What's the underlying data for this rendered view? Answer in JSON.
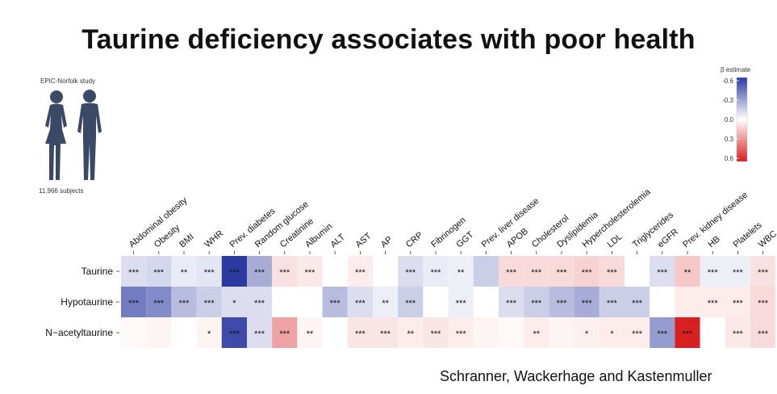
{
  "title": "Taurine deficiency associates with poor health",
  "study": {
    "label": "EPIC-Norfolk study",
    "subjects": "11,966 subjects"
  },
  "credit": "Schranner, Wackerhage and Kastenmuller",
  "legend": {
    "title": "β estimate",
    "ticks": [
      "-0.6",
      "-0.3",
      "0.0",
      "0.3",
      "0.6"
    ]
  },
  "colors": {
    "negative": "#2b3aa0",
    "neutral": "#ffffff",
    "positive": "#d82020",
    "figure": "#3a4a66"
  },
  "chart_data": {
    "type": "heatmap",
    "title": "Taurine deficiency associates with poor health",
    "x_labels": [
      "Abdominal obesity",
      "Obesity",
      "BMI",
      "WHR",
      "Prev. diabetes",
      "Random glucose",
      "Creatinine",
      "Albumin",
      "ALT",
      "AST",
      "AP",
      "CRP",
      "Fibrinogen",
      "GGT",
      "Prev. liver disease",
      "APOB",
      "Cholesterol",
      "Dyslipidemia",
      "Hypercholesterolemia",
      "LDL",
      "Triglycerides",
      "eGFR",
      "Prev. kidney disease",
      "HB",
      "Platelets",
      "WBC"
    ],
    "y_labels": [
      "Taurine",
      "Hypotaurine",
      "N−acetyltaurine"
    ],
    "value_range": [
      -0.6,
      0.6
    ],
    "legend_title": "β estimate",
    "values": [
      [
        -0.1,
        -0.12,
        -0.06,
        -0.08,
        -0.62,
        -0.25,
        0.08,
        0.06,
        0.0,
        0.05,
        0.0,
        -0.1,
        -0.06,
        -0.05,
        -0.15,
        0.1,
        0.1,
        0.1,
        0.12,
        0.1,
        0.0,
        -0.1,
        0.15,
        -0.05,
        -0.05,
        0.08
      ],
      [
        -0.4,
        -0.35,
        -0.2,
        -0.15,
        -0.1,
        -0.1,
        0.0,
        0.0,
        -0.2,
        -0.1,
        -0.05,
        -0.15,
        0.0,
        -0.05,
        0.0,
        -0.1,
        -0.15,
        -0.2,
        -0.25,
        -0.15,
        -0.15,
        0.0,
        0.05,
        0.05,
        0.05,
        0.1
      ],
      [
        0.02,
        0.03,
        0.0,
        0.03,
        -0.55,
        -0.1,
        0.25,
        0.03,
        0.0,
        0.07,
        0.07,
        0.05,
        0.07,
        0.05,
        0.03,
        0.02,
        0.05,
        0.03,
        0.04,
        0.05,
        0.05,
        -0.3,
        0.6,
        0.0,
        0.06,
        0.1
      ]
    ],
    "significance": [
      [
        "***",
        "***",
        "**",
        "***",
        "***",
        "***",
        "***",
        "***",
        "",
        "***",
        "",
        "***",
        "***",
        "**",
        "",
        "***",
        "***",
        "***",
        "***",
        "***",
        "",
        "***",
        "**",
        "***",
        "***",
        "***"
      ],
      [
        "***",
        "***",
        "***",
        "***",
        "*",
        "***",
        "",
        "",
        "***",
        "***",
        "**",
        "***",
        "",
        "***",
        "",
        "***",
        "***",
        "***",
        "***",
        "***",
        "***",
        "",
        "",
        "***",
        "***",
        "***"
      ],
      [
        "",
        "",
        "",
        "*",
        "***",
        "***",
        "***",
        "**",
        "",
        "***",
        "***",
        "**",
        "***",
        "***",
        "",
        "",
        "**",
        "",
        "*",
        "*",
        "***",
        "***",
        "***",
        "",
        "***",
        "***"
      ]
    ]
  }
}
